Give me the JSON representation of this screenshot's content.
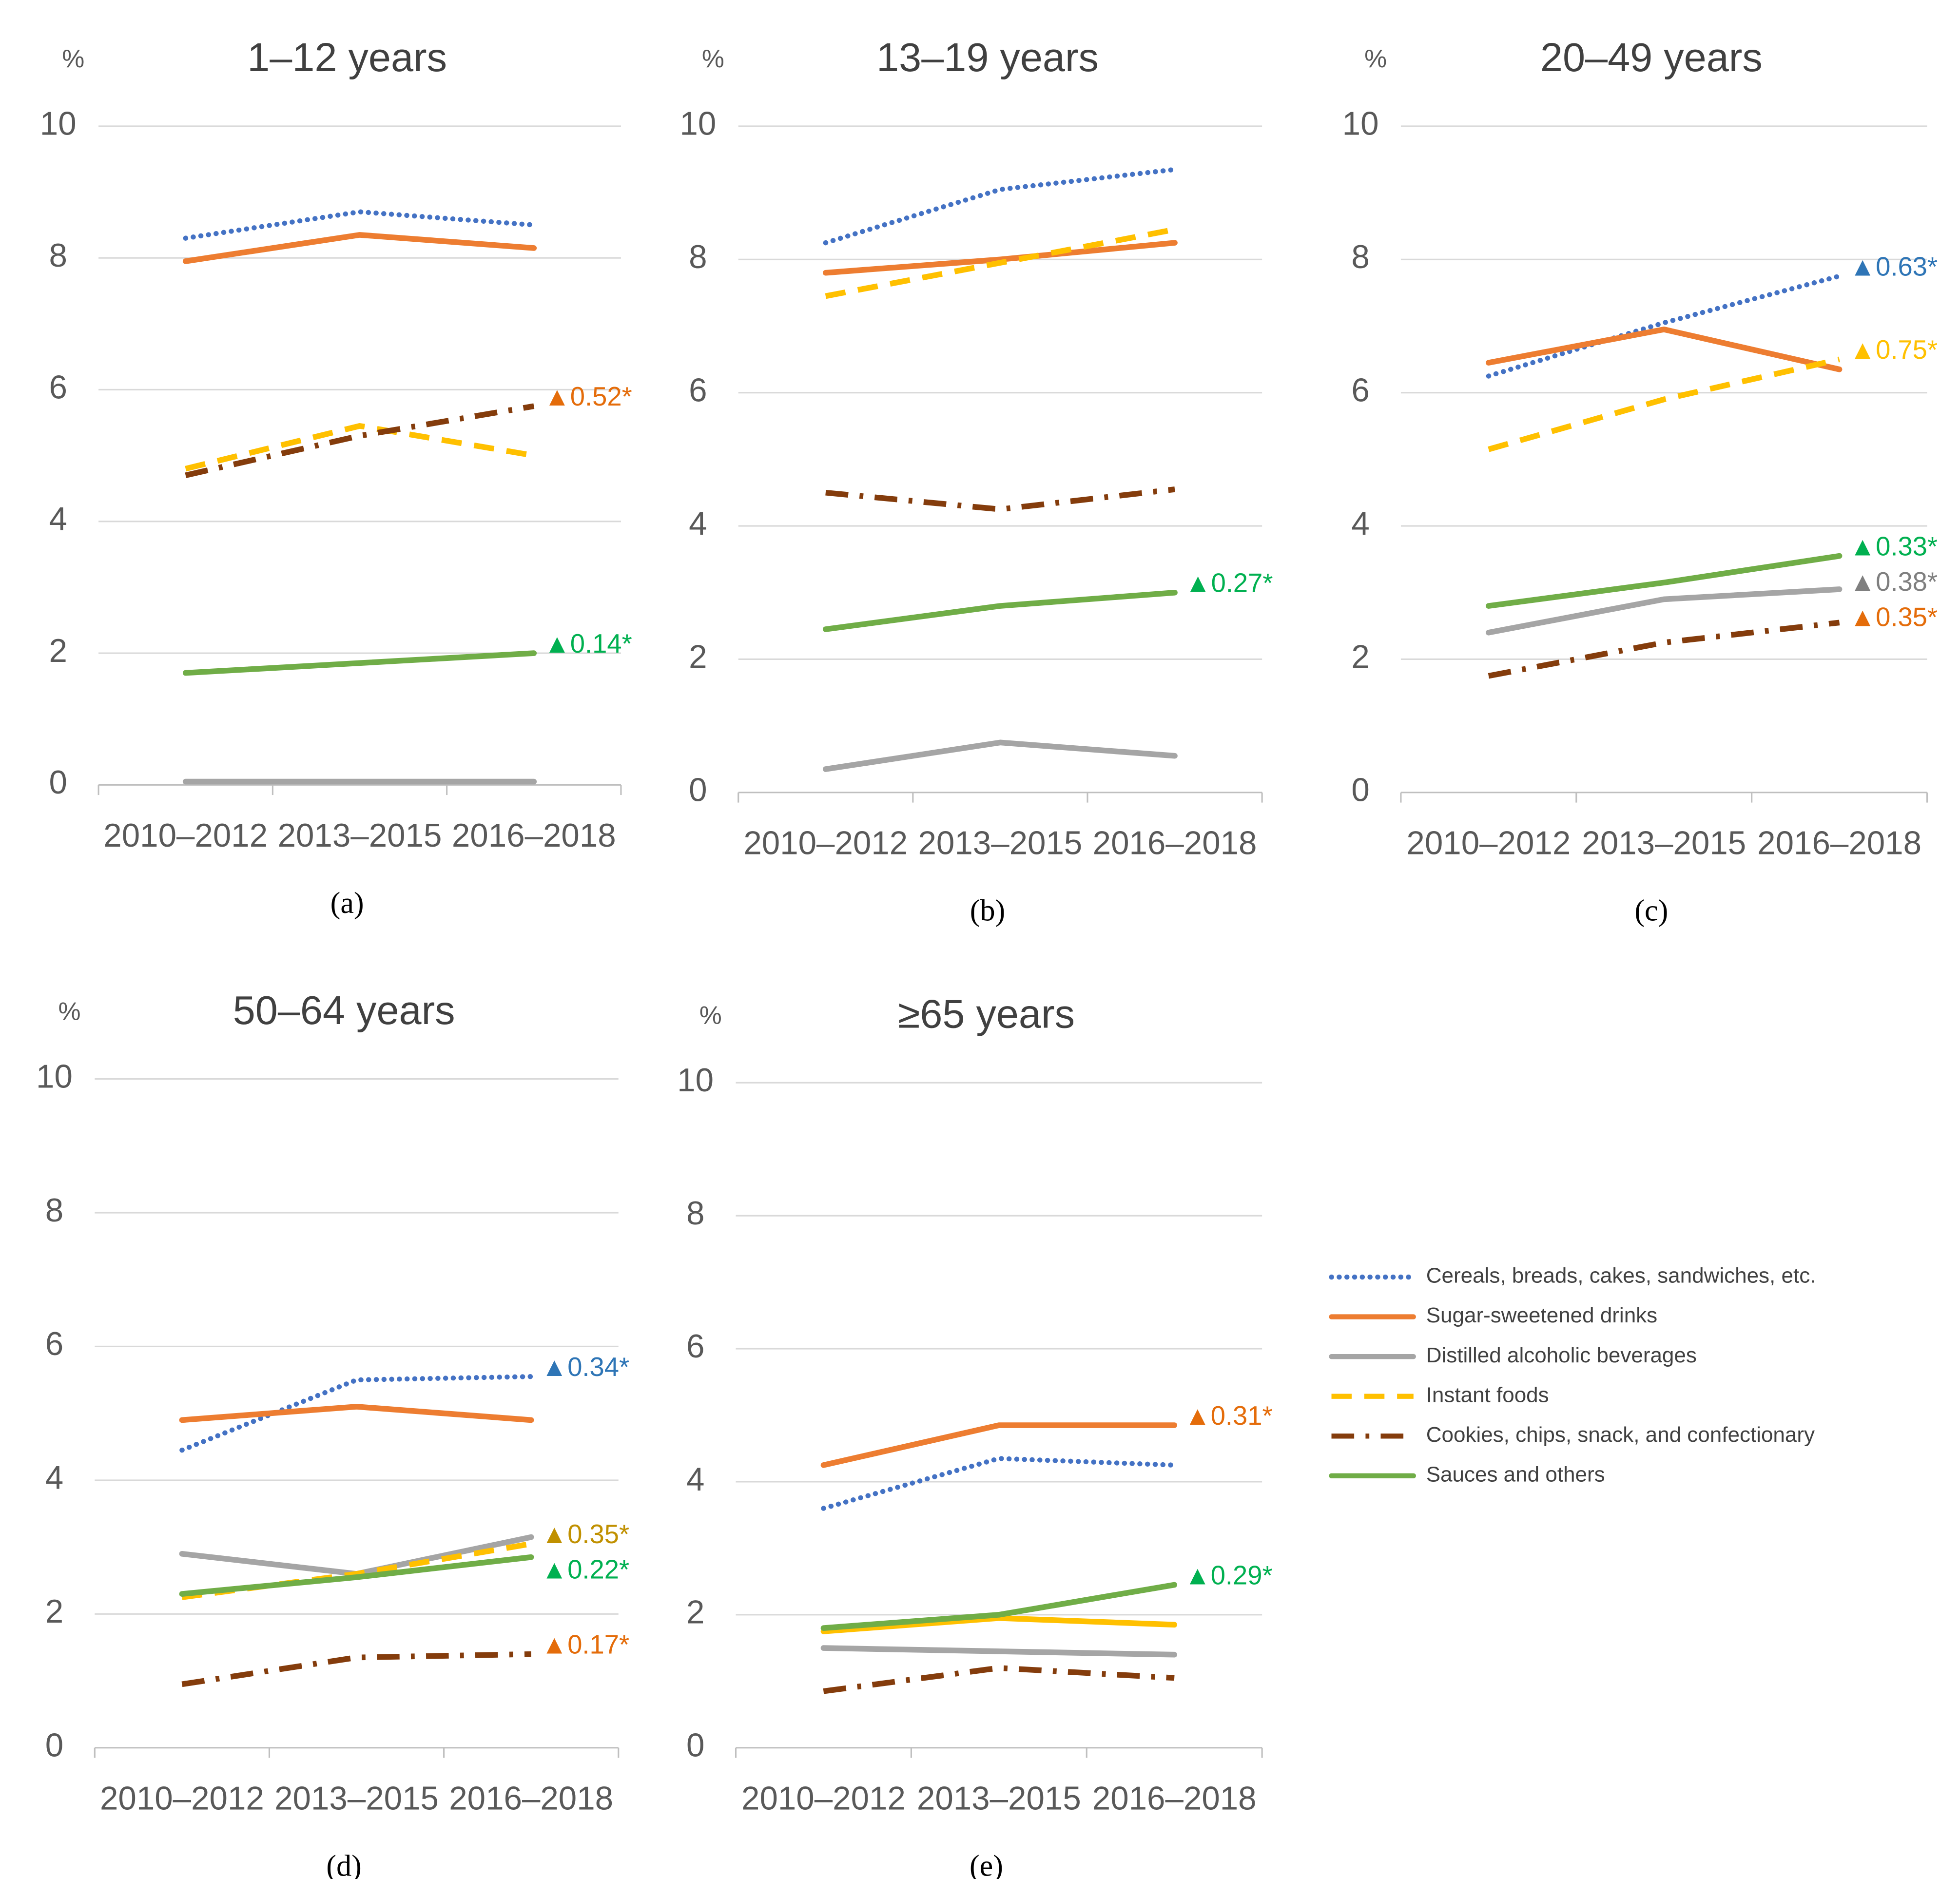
{
  "chart_data": [
    {
      "type": "line",
      "title": "1–12 years",
      "label": "(a)",
      "y_label": "%",
      "categories": [
        "2010–2012",
        "2013–2015",
        "2016–2018"
      ],
      "ylim": [
        0,
        10
      ],
      "yticks": [
        0,
        2,
        4,
        6,
        8,
        10
      ],
      "grid": true,
      "series": [
        {
          "name": "Cereals, breads, cakes, sandwiches, etc.",
          "color": "#4472c4",
          "style": "dotted",
          "values": [
            8.3,
            8.7,
            8.5
          ]
        },
        {
          "name": "Sugar-sweetened drinks",
          "color": "#ed7d31",
          "style": "solid",
          "values": [
            7.95,
            8.35,
            8.15
          ]
        },
        {
          "name": "Distilled alcoholic beverages",
          "color": "#a5a5a5",
          "style": "solid",
          "values": [
            0.05,
            0.05,
            0.05
          ]
        },
        {
          "name": "Instant foods",
          "color": "#ffc000",
          "style": "dashed",
          "values": [
            4.8,
            5.45,
            5.0
          ]
        },
        {
          "name": "Cookies, chips, snack, and confectionary",
          "color": "#843c0c",
          "style": "dashdot",
          "values": [
            4.7,
            5.3,
            5.75
          ],
          "annotation": "▲0.52*",
          "annotation_color": "#e46c0a"
        },
        {
          "name": "Sauces and others",
          "color": "#70ad47",
          "style": "solid",
          "values": [
            1.7,
            1.85,
            2.0
          ],
          "annotation": "▲0.14*",
          "annotation_color": "#00b050"
        }
      ]
    },
    {
      "type": "line",
      "title": "13–19 years",
      "label": "(b)",
      "y_label": "%",
      "categories": [
        "2010–2012",
        "2013–2015",
        "2016–2018"
      ],
      "ylim": [
        0,
        10
      ],
      "yticks": [
        0,
        2,
        4,
        6,
        8,
        10
      ],
      "grid": true,
      "series": [
        {
          "name": "Cereals, breads, cakes, sandwiches, etc.",
          "color": "#4472c4",
          "style": "dotted",
          "values": [
            8.25,
            9.05,
            9.35
          ]
        },
        {
          "name": "Sugar-sweetened drinks",
          "color": "#ed7d31",
          "style": "solid",
          "values": [
            7.8,
            8.0,
            8.25
          ]
        },
        {
          "name": "Distilled alcoholic beverages",
          "color": "#a5a5a5",
          "style": "solid",
          "values": [
            0.35,
            0.75,
            0.55
          ]
        },
        {
          "name": "Instant foods",
          "color": "#ffc000",
          "style": "dashed",
          "values": [
            7.45,
            7.95,
            8.45
          ]
        },
        {
          "name": "Cookies, chips, snack, and confectionary",
          "color": "#843c0c",
          "style": "dashdot",
          "values": [
            4.5,
            4.25,
            4.55
          ]
        },
        {
          "name": "Sauces and others",
          "color": "#70ad47",
          "style": "solid",
          "values": [
            2.45,
            2.8,
            3.0
          ],
          "annotation": "▲0.27*",
          "annotation_color": "#00b050"
        }
      ]
    },
    {
      "type": "line",
      "title": "20–49 years",
      "label": "(c)",
      "y_label": "%",
      "categories": [
        "2010–2012",
        "2013–2015",
        "2016–2018"
      ],
      "ylim": [
        0,
        10
      ],
      "yticks": [
        0,
        2,
        4,
        6,
        8,
        10
      ],
      "grid": true,
      "series": [
        {
          "name": "Cereals, breads, cakes, sandwiches, etc.",
          "color": "#4472c4",
          "style": "dotted",
          "values": [
            6.25,
            7.05,
            7.75
          ],
          "annotation": "▲0.63*",
          "annotation_color": "#2e75b6"
        },
        {
          "name": "Sugar-sweetened drinks",
          "color": "#ed7d31",
          "style": "solid",
          "values": [
            6.45,
            6.95,
            6.35
          ]
        },
        {
          "name": "Distilled alcoholic beverages",
          "color": "#a5a5a5",
          "style": "solid",
          "values": [
            2.4,
            2.9,
            3.05
          ],
          "annotation": "▲0.38*",
          "annotation_color": "#7f7f7f"
        },
        {
          "name": "Instant foods",
          "color": "#ffc000",
          "style": "dashed",
          "values": [
            5.15,
            5.9,
            6.5
          ],
          "annotation": "▲0.75*",
          "annotation_color": "#ffc000"
        },
        {
          "name": "Cookies, chips, snack, and confectionary",
          "color": "#843c0c",
          "style": "dashdot",
          "values": [
            1.75,
            2.25,
            2.55
          ],
          "annotation": "▲0.35*",
          "annotation_color": "#e46c0a"
        },
        {
          "name": "Sauces and others",
          "color": "#70ad47",
          "style": "solid",
          "values": [
            2.8,
            3.15,
            3.55
          ],
          "annotation": "▲0.33*",
          "annotation_color": "#00b050"
        }
      ]
    },
    {
      "type": "line",
      "title": "50–64 years",
      "label": "(d)",
      "y_label": "%",
      "categories": [
        "2010–2012",
        "2013–2015",
        "2016–2018"
      ],
      "ylim": [
        0,
        10
      ],
      "yticks": [
        0,
        2,
        4,
        6,
        8,
        10
      ],
      "grid": true,
      "series": [
        {
          "name": "Cereals, breads, cakes, sandwiches, etc.",
          "color": "#4472c4",
          "style": "dotted",
          "values": [
            4.45,
            5.5,
            5.55
          ],
          "annotation": "▲0.34*",
          "annotation_color": "#2e75b6"
        },
        {
          "name": "Sugar-sweetened drinks",
          "color": "#ed7d31",
          "style": "solid",
          "values": [
            4.9,
            5.1,
            4.9
          ]
        },
        {
          "name": "Distilled alcoholic beverages",
          "color": "#a5a5a5",
          "style": "solid",
          "values": [
            2.9,
            2.6,
            3.15
          ]
        },
        {
          "name": "Instant foods",
          "color": "#ffc000",
          "style": "dashed",
          "values": [
            2.25,
            2.6,
            3.05
          ],
          "annotation": "▲0.35*",
          "annotation_color": "#c09000"
        },
        {
          "name": "Cookies, chips, snack, and confectionary",
          "color": "#843c0c",
          "style": "dashdot",
          "values": [
            0.95,
            1.35,
            1.4
          ],
          "annotation": "▲0.17*",
          "annotation_color": "#e46c0a"
        },
        {
          "name": "Sauces and others",
          "color": "#70ad47",
          "style": "solid",
          "values": [
            2.3,
            2.55,
            2.85
          ],
          "annotation": "▲0.22*",
          "annotation_color": "#00b050"
        }
      ]
    },
    {
      "type": "line",
      "title": "≥65 years",
      "label": "(e)",
      "y_label": "%",
      "categories": [
        "2010–2012",
        "2013–2015",
        "2016–2018"
      ],
      "ylim": [
        0,
        10
      ],
      "yticks": [
        0,
        2,
        4,
        6,
        8,
        10
      ],
      "grid": true,
      "series": [
        {
          "name": "Cereals, breads, cakes, sandwiches, etc.",
          "color": "#4472c4",
          "style": "dotted",
          "values": [
            3.6,
            4.35,
            4.25
          ]
        },
        {
          "name": "Sugar-sweetened drinks",
          "color": "#ed7d31",
          "style": "solid",
          "values": [
            4.25,
            4.85,
            4.85
          ],
          "annotation": "▲0.31*",
          "annotation_color": "#e46c0a"
        },
        {
          "name": "Distilled alcoholic beverages",
          "color": "#a5a5a5",
          "style": "solid",
          "values": [
            1.5,
            1.45,
            1.4
          ]
        },
        {
          "name": "Instant foods",
          "color": "#ffc000",
          "style": "solid",
          "values": [
            1.75,
            1.95,
            1.85
          ]
        },
        {
          "name": "Cookies, chips, snack, and confectionary",
          "color": "#843c0c",
          "style": "dashdot",
          "values": [
            0.85,
            1.2,
            1.05
          ]
        },
        {
          "name": "Sauces and others",
          "color": "#70ad47",
          "style": "solid",
          "values": [
            1.8,
            2.0,
            2.45
          ],
          "annotation": "▲0.29*",
          "annotation_color": "#00b050"
        }
      ]
    }
  ]
}
